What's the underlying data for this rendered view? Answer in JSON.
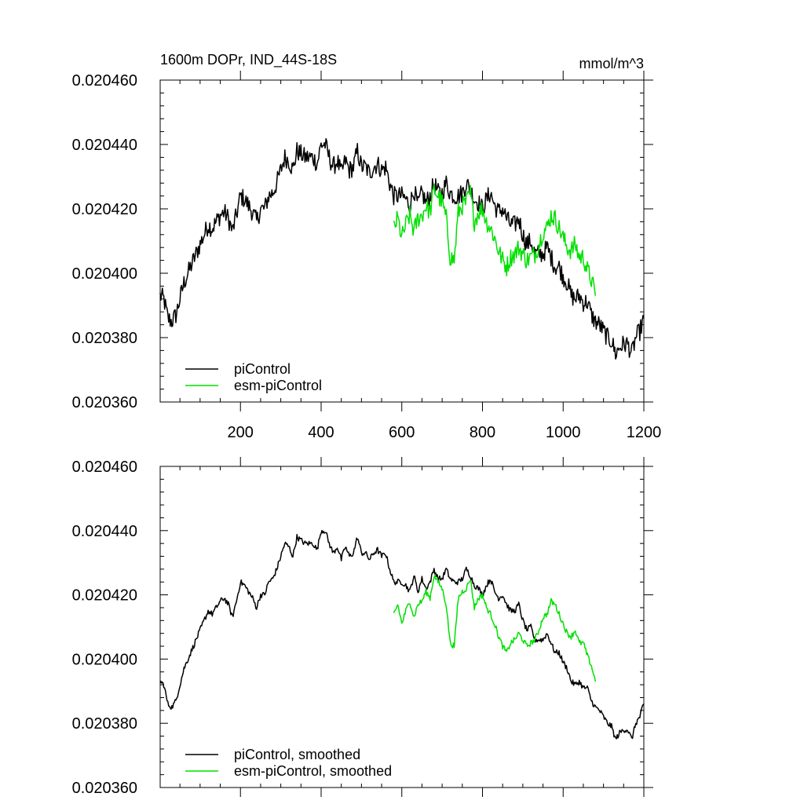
{
  "chart_data": [
    {
      "type": "line",
      "title_left": "1600m DOPr, IND_44S-18S",
      "title_right": "mmol/m^3",
      "xlim": [
        1,
        1200
      ],
      "ylim": [
        0.02036,
        0.02046
      ],
      "yticks": [
        "0.020360",
        "0.020380",
        "0.020400",
        "0.020420",
        "0.020440",
        "0.020460"
      ],
      "xticks": [
        "200",
        "400",
        "600",
        "800",
        "1000",
        "1200"
      ],
      "legend_position": "bottom-left",
      "series": [
        {
          "name": "piControl",
          "color": "#000000",
          "x": [
            1,
            10,
            20,
            30,
            40,
            50,
            60,
            70,
            80,
            90,
            100,
            110,
            120,
            130,
            140,
            150,
            160,
            170,
            180,
            190,
            200,
            210,
            220,
            230,
            240,
            250,
            260,
            270,
            280,
            290,
            300,
            310,
            320,
            330,
            340,
            350,
            360,
            370,
            380,
            390,
            400,
            410,
            420,
            430,
            440,
            450,
            460,
            470,
            480,
            490,
            500,
            510,
            520,
            530,
            540,
            550,
            560,
            570,
            580,
            590,
            600,
            610,
            620,
            630,
            640,
            650,
            660,
            670,
            680,
            690,
            700,
            710,
            720,
            730,
            740,
            750,
            760,
            770,
            780,
            790,
            800,
            810,
            820,
            830,
            840,
            850,
            860,
            870,
            880,
            890,
            900,
            910,
            920,
            930,
            940,
            950,
            960,
            970,
            980,
            990,
            1000,
            1010,
            1020,
            1030,
            1040,
            1050,
            1060,
            1070,
            1080,
            1090,
            1100,
            1110,
            1120,
            1130,
            1140,
            1150,
            1160,
            1170,
            1180,
            1190,
            1200
          ],
          "values": [
            0.020393,
            0.020392,
            0.020386,
            0.020385,
            0.020387,
            0.020392,
            0.020397,
            0.0204,
            0.020403,
            0.020406,
            0.020409,
            0.020412,
            0.020415,
            0.020414,
            0.020416,
            0.020418,
            0.020419,
            0.020417,
            0.020413,
            0.020418,
            0.020424,
            0.020423,
            0.020421,
            0.020419,
            0.020416,
            0.02042,
            0.02042,
            0.020424,
            0.020425,
            0.020428,
            0.020432,
            0.020436,
            0.020435,
            0.020432,
            0.020438,
            0.020437,
            0.020436,
            0.020436,
            0.020436,
            0.020434,
            0.02044,
            0.02044,
            0.020436,
            0.020433,
            0.020435,
            0.020431,
            0.020435,
            0.020432,
            0.020433,
            0.020438,
            0.020433,
            0.020433,
            0.020431,
            0.020433,
            0.020434,
            0.020432,
            0.020433,
            0.020428,
            0.020424,
            0.020424,
            0.020424,
            0.020423,
            0.020421,
            0.020426,
            0.020421,
            0.020425,
            0.020422,
            0.020424,
            0.020428,
            0.020425,
            0.020425,
            0.020428,
            0.020425,
            0.020424,
            0.020424,
            0.020425,
            0.020428,
            0.020426,
            0.020423,
            0.020422,
            0.02042,
            0.020423,
            0.020425,
            0.020421,
            0.020419,
            0.02042,
            0.020417,
            0.020415,
            0.020415,
            0.020417,
            0.020412,
            0.020409,
            0.02041,
            0.020406,
            0.020406,
            0.020406,
            0.020408,
            0.020405,
            0.020402,
            0.020402,
            0.020399,
            0.020397,
            0.020393,
            0.020392,
            0.020393,
            0.020391,
            0.020391,
            0.020387,
            0.020385,
            0.020384,
            0.020382,
            0.02038,
            0.020379,
            0.020375,
            0.020377,
            0.020378,
            0.020378,
            0.020375,
            0.02038,
            0.020382,
            0.020386
          ]
        },
        {
          "name": "esm-piControl",
          "color": "#00e000",
          "x": [
            580,
            590,
            600,
            610,
            620,
            630,
            640,
            650,
            660,
            670,
            680,
            690,
            700,
            710,
            720,
            730,
            740,
            750,
            760,
            770,
            780,
            790,
            800,
            810,
            820,
            830,
            840,
            850,
            860,
            870,
            880,
            890,
            900,
            910,
            920,
            930,
            940,
            950,
            960,
            970,
            980,
            990,
            1000,
            1010,
            1020,
            1030,
            1040,
            1050,
            1060,
            1070,
            1080
          ],
          "values": [
            0.020414,
            0.020417,
            0.020411,
            0.020415,
            0.020418,
            0.020413,
            0.020417,
            0.020418,
            0.020421,
            0.020419,
            0.020426,
            0.020424,
            0.020422,
            0.020417,
            0.020405,
            0.020404,
            0.020419,
            0.020421,
            0.020422,
            0.020425,
            0.020416,
            0.020419,
            0.02042,
            0.020416,
            0.020414,
            0.020411,
            0.020407,
            0.020404,
            0.020402,
            0.020405,
            0.020406,
            0.020408,
            0.020406,
            0.020404,
            0.020405,
            0.020406,
            0.020409,
            0.020413,
            0.020414,
            0.020418,
            0.020417,
            0.020414,
            0.020411,
            0.020408,
            0.020407,
            0.020409,
            0.020405,
            0.020405,
            0.020401,
            0.020398,
            0.020393
          ]
        }
      ]
    },
    {
      "type": "line",
      "xlim": [
        1,
        1200
      ],
      "ylim": [
        0.02036,
        0.02046
      ],
      "yticks": [
        "0.020360",
        "0.020380",
        "0.020400",
        "0.020420",
        "0.020440",
        "0.020460"
      ],
      "legend_position": "bottom-left",
      "series": [
        {
          "name": "piControl, smoothed",
          "color": "#000000",
          "x": [
            1,
            10,
            20,
            30,
            40,
            50,
            60,
            70,
            80,
            90,
            100,
            110,
            120,
            130,
            140,
            150,
            160,
            170,
            180,
            190,
            200,
            210,
            220,
            230,
            240,
            250,
            260,
            270,
            280,
            290,
            300,
            310,
            320,
            330,
            340,
            350,
            360,
            370,
            380,
            390,
            400,
            410,
            420,
            430,
            440,
            450,
            460,
            470,
            480,
            490,
            500,
            510,
            520,
            530,
            540,
            550,
            560,
            570,
            580,
            590,
            600,
            610,
            620,
            630,
            640,
            650,
            660,
            670,
            680,
            690,
            700,
            710,
            720,
            730,
            740,
            750,
            760,
            770,
            780,
            790,
            800,
            810,
            820,
            830,
            840,
            850,
            860,
            870,
            880,
            890,
            900,
            910,
            920,
            930,
            940,
            950,
            960,
            970,
            980,
            990,
            1000,
            1010,
            1020,
            1030,
            1040,
            1050,
            1060,
            1070,
            1080,
            1090,
            1100,
            1110,
            1120,
            1130,
            1140,
            1150,
            1160,
            1170,
            1180,
            1190,
            1200
          ],
          "values": [
            0.020393,
            0.020392,
            0.020386,
            0.020385,
            0.020387,
            0.020392,
            0.020397,
            0.0204,
            0.020403,
            0.020406,
            0.020409,
            0.020412,
            0.020415,
            0.020414,
            0.020416,
            0.020418,
            0.020419,
            0.020417,
            0.020413,
            0.020418,
            0.020424,
            0.020423,
            0.020421,
            0.020419,
            0.020416,
            0.02042,
            0.02042,
            0.020424,
            0.020425,
            0.020428,
            0.020432,
            0.020436,
            0.020435,
            0.020432,
            0.020438,
            0.020437,
            0.020436,
            0.020436,
            0.020436,
            0.020434,
            0.02044,
            0.02044,
            0.020436,
            0.020433,
            0.020435,
            0.020431,
            0.020435,
            0.020432,
            0.020433,
            0.020438,
            0.020433,
            0.020433,
            0.020431,
            0.020433,
            0.020434,
            0.020432,
            0.020433,
            0.020428,
            0.020424,
            0.020424,
            0.020424,
            0.020423,
            0.020421,
            0.020426,
            0.020421,
            0.020425,
            0.020422,
            0.020424,
            0.020428,
            0.020425,
            0.020425,
            0.020428,
            0.020425,
            0.020424,
            0.020424,
            0.020425,
            0.020428,
            0.020426,
            0.020423,
            0.020422,
            0.02042,
            0.020423,
            0.020425,
            0.020421,
            0.020419,
            0.02042,
            0.020417,
            0.020415,
            0.020415,
            0.020417,
            0.020412,
            0.020409,
            0.02041,
            0.020406,
            0.020406,
            0.020406,
            0.020408,
            0.020405,
            0.020402,
            0.020402,
            0.020399,
            0.020397,
            0.020393,
            0.020392,
            0.020393,
            0.020391,
            0.020391,
            0.020387,
            0.020385,
            0.020384,
            0.020382,
            0.02038,
            0.020379,
            0.020375,
            0.020377,
            0.020378,
            0.020378,
            0.020375,
            0.02038,
            0.020382,
            0.020386
          ]
        },
        {
          "name": "esm-piControl, smoothed",
          "color": "#00e000",
          "x": [
            580,
            590,
            600,
            610,
            620,
            630,
            640,
            650,
            660,
            670,
            680,
            690,
            700,
            710,
            720,
            730,
            740,
            750,
            760,
            770,
            780,
            790,
            800,
            810,
            820,
            830,
            840,
            850,
            860,
            870,
            880,
            890,
            900,
            910,
            920,
            930,
            940,
            950,
            960,
            970,
            980,
            990,
            1000,
            1010,
            1020,
            1030,
            1040,
            1050,
            1060,
            1070,
            1080
          ],
          "values": [
            0.020414,
            0.020417,
            0.020411,
            0.020415,
            0.020418,
            0.020413,
            0.020417,
            0.020418,
            0.020421,
            0.020419,
            0.020426,
            0.020424,
            0.020422,
            0.020417,
            0.020405,
            0.020404,
            0.020419,
            0.020421,
            0.020422,
            0.020425,
            0.020416,
            0.020419,
            0.02042,
            0.020416,
            0.020414,
            0.020411,
            0.020407,
            0.020404,
            0.020402,
            0.020405,
            0.020406,
            0.020408,
            0.020406,
            0.020404,
            0.020405,
            0.020406,
            0.020409,
            0.020413,
            0.020414,
            0.020418,
            0.020417,
            0.020414,
            0.020411,
            0.020408,
            0.020407,
            0.020409,
            0.020405,
            0.020405,
            0.020401,
            0.020398,
            0.020393
          ]
        }
      ]
    }
  ]
}
